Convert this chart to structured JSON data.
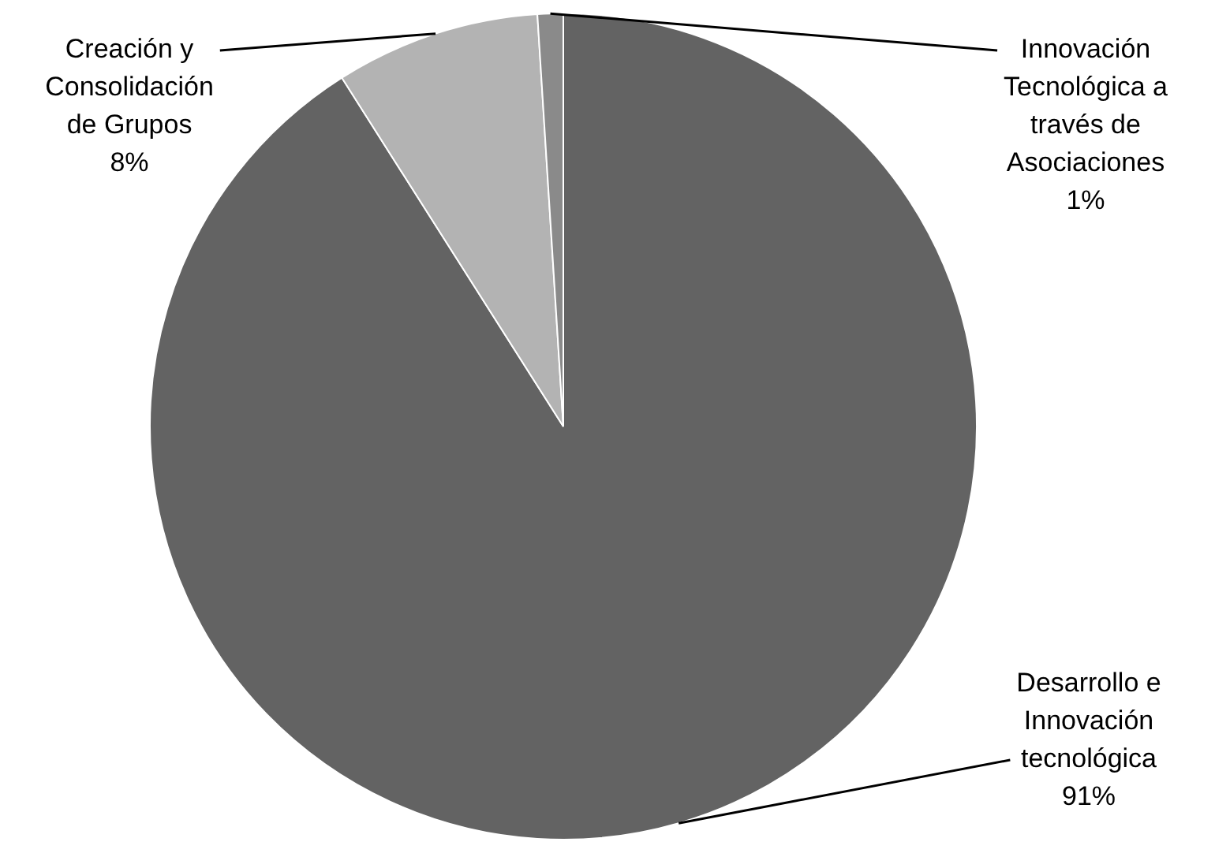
{
  "chart_data": {
    "type": "pie",
    "categories": [
      "Desarrollo e Innovación tecnológica",
      "Creación y Consolidación de Grupos",
      "Innovación Tecnológica a través de Asociaciones"
    ],
    "values": [
      91,
      8,
      1
    ],
    "colors": [
      "#636363",
      "#b3b3b3",
      "#8a8a8a"
    ],
    "value_labels": [
      "91%",
      "8%",
      "1%"
    ],
    "legend": false
  }
}
